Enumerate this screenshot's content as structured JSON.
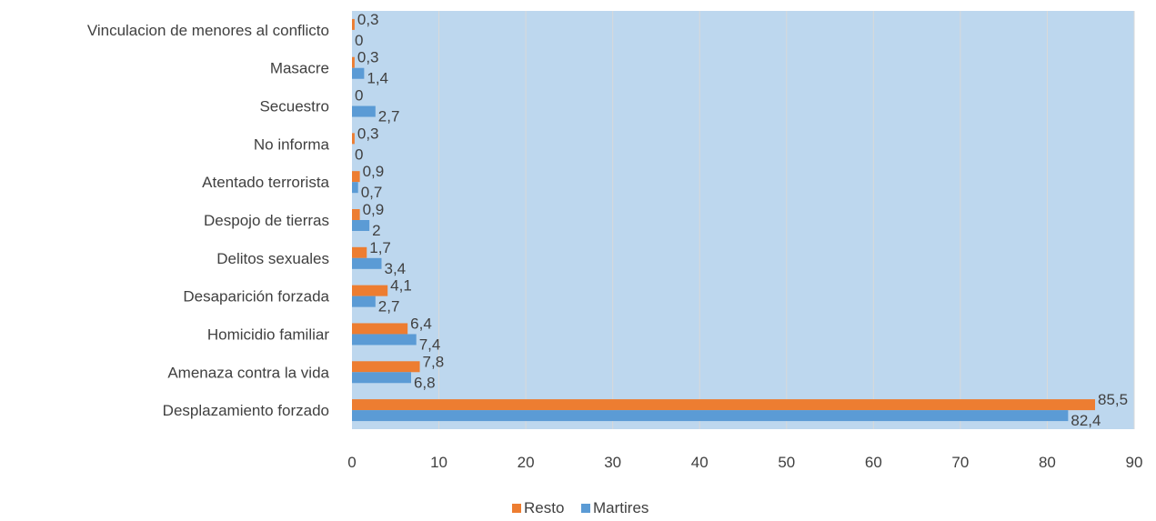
{
  "chart_data": {
    "type": "bar",
    "orientation": "horizontal",
    "title": "",
    "xlabel": "",
    "ylabel": "",
    "xlim": [
      0,
      90
    ],
    "x_ticks": [
      "0",
      "10",
      "20",
      "30",
      "40",
      "50",
      "60",
      "70",
      "80",
      "90"
    ],
    "grid": true,
    "legend_position": "bottom",
    "plot_background": "#bdd7ee",
    "categories": [
      "Desplazamiento forzado",
      "Amenaza contra la vida",
      "Homicidio familiar",
      "Desaparición forzada",
      "Delitos sexuales",
      "Despojo de tierras",
      "Atentado  terrorista",
      "No informa",
      "Secuestro",
      "Masacre",
      "Vinculacion de menores al conflicto"
    ],
    "series": [
      {
        "name": "Resto",
        "color": "#ed7d31",
        "values": [
          85.5,
          7.8,
          6.4,
          4.1,
          1.7,
          0.9,
          0.9,
          0.3,
          0,
          0.3,
          0.3
        ],
        "labels": [
          "85,5",
          "7,8",
          "6,4",
          "4,1",
          "1,7",
          "0,9",
          "0,9",
          "0,3",
          "0",
          "0,3",
          "0,3"
        ]
      },
      {
        "name": "Martires",
        "color": "#5b9bd5",
        "values": [
          82.4,
          6.8,
          7.4,
          2.7,
          3.4,
          2,
          0.7,
          0,
          2.7,
          1.4,
          0
        ],
        "labels": [
          "82,4",
          "6,8",
          "7,4",
          "2,7",
          "3,4",
          "2",
          "0,7",
          "0",
          "2,7",
          "1,4",
          "0"
        ]
      }
    ]
  }
}
